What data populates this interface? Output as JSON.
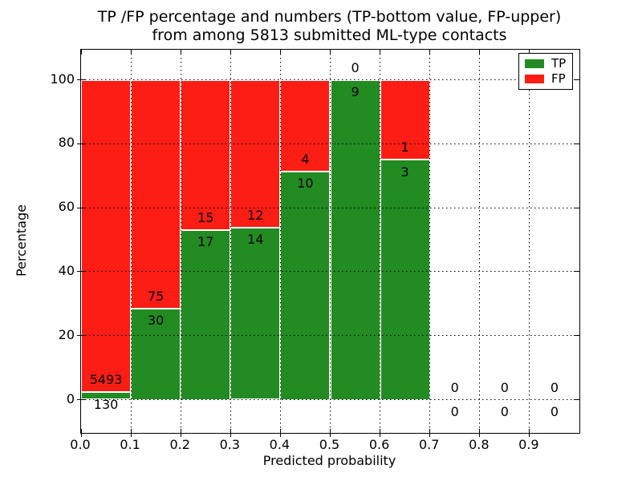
{
  "chart_data": {
    "type": "bar",
    "stacked": true,
    "normalized_to_percent": true,
    "title": "TP /FP percentage and numbers (TP-bottom value, FP-upper)",
    "subtitle": "from among 5813 submitted ML-type contacts",
    "xlabel": "Predicted probability",
    "ylabel": "Percentage",
    "xlim": [
      0.0,
      1.0
    ],
    "ylim": [
      0,
      100
    ],
    "grid": "dotted",
    "legend_position": "upper right",
    "series": [
      {
        "name": "TP",
        "color": "#228b22"
      },
      {
        "name": "FP",
        "color": "#fc1d14"
      }
    ],
    "bin_width": 0.1,
    "bins": [
      {
        "x0": 0.0,
        "x1": 0.1,
        "tp": 130,
        "fp": 5493
      },
      {
        "x0": 0.1,
        "x1": 0.2,
        "tp": 30,
        "fp": 75
      },
      {
        "x0": 0.2,
        "x1": 0.3,
        "tp": 17,
        "fp": 15
      },
      {
        "x0": 0.3,
        "x1": 0.4,
        "tp": 14,
        "fp": 12
      },
      {
        "x0": 0.4,
        "x1": 0.5,
        "tp": 10,
        "fp": 4
      },
      {
        "x0": 0.5,
        "x1": 0.6,
        "tp": 9,
        "fp": 0
      },
      {
        "x0": 0.6,
        "x1": 0.7,
        "tp": 3,
        "fp": 1
      },
      {
        "x0": 0.7,
        "x1": 0.8,
        "tp": 0,
        "fp": 0
      },
      {
        "x0": 0.8,
        "x1": 0.9,
        "tp": 0,
        "fp": 0
      },
      {
        "x0": 0.9,
        "x1": 1.0,
        "tp": 0,
        "fp": 0
      }
    ],
    "xticks": [
      "0.0",
      "0.1",
      "0.2",
      "0.3",
      "0.4",
      "0.5",
      "0.6",
      "0.7",
      "0.8",
      "0.9"
    ],
    "yticks": [
      "0",
      "20",
      "40",
      "60",
      "80",
      "100"
    ]
  }
}
